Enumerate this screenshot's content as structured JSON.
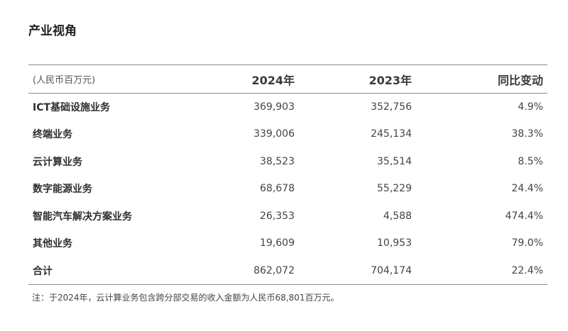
{
  "section_title": "产业视角",
  "table": {
    "header": {
      "unit": "(人民币百万元)",
      "col_2024": "2024年",
      "col_2023": "2023年",
      "col_change": "同比变动"
    },
    "rows": [
      {
        "category": "ICT基础设施业务",
        "v2024": "369,903",
        "v2023": "352,756",
        "change": "4.9%"
      },
      {
        "category": "终端业务",
        "v2024": "339,006",
        "v2023": "245,134",
        "change": "38.3%"
      },
      {
        "category": "云计算业务",
        "v2024": "38,523",
        "v2023": "35,514",
        "change": "8.5%"
      },
      {
        "category": "数字能源业务",
        "v2024": "68,678",
        "v2023": "55,229",
        "change": "24.4%"
      },
      {
        "category": "智能汽车解决方案业务",
        "v2024": "26,353",
        "v2023": "4,588",
        "change": "474.4%"
      },
      {
        "category": "其他业务",
        "v2024": "19,609",
        "v2023": "10,953",
        "change": "79.0%"
      },
      {
        "category": "合计",
        "v2024": "862,072",
        "v2023": "704,174",
        "change": "22.4%"
      }
    ]
  },
  "footnote": "注：于2024年，云计算业务包含跨分部交易的收入金额为人民币68,801百万元。"
}
